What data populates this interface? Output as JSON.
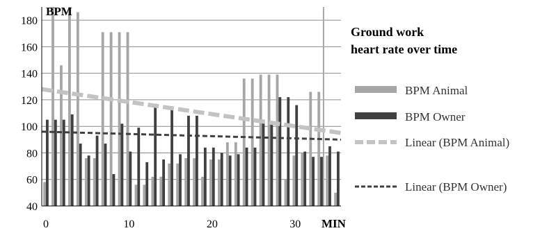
{
  "chart_data": {
    "type": "bar",
    "title_lines": [
      "Ground work",
      "heart rate over time"
    ],
    "xlabel": "MIN",
    "ylabel": "BPM",
    "x_ticks": [
      "0",
      "10",
      "20",
      "30"
    ],
    "y_ticks": [
      "40",
      "60",
      "80",
      "100",
      "120",
      "140",
      "160",
      "180"
    ],
    "xlim": [
      -0.5,
      35.5
    ],
    "ylim": [
      40,
      190
    ],
    "grid": true,
    "legend_position": "right",
    "x": [
      0,
      1,
      2,
      3,
      4,
      5,
      6,
      7,
      8,
      9,
      10,
      11,
      12,
      13,
      14,
      15,
      16,
      17,
      18,
      19,
      20,
      21,
      22,
      23,
      24,
      25,
      26,
      27,
      28,
      29,
      30,
      31,
      32,
      33,
      34,
      35
    ],
    "series": [
      {
        "name": "BPM Animal",
        "color": "#a6a6a6",
        "values": [
          58,
          190,
          146,
          190,
          186,
          76,
          76,
          171,
          171,
          171,
          171,
          56,
          56,
          62,
          62,
          72,
          72,
          76,
          76,
          62,
          75,
          75,
          88,
          88,
          136,
          136,
          139,
          139,
          139,
          60,
          78,
          80,
          126,
          126,
          78,
          50
        ]
      },
      {
        "name": "BPM Owner",
        "color": "#404040",
        "values": [
          105,
          105,
          105,
          109,
          87,
          78,
          93,
          87,
          64,
          102,
          81,
          99,
          73,
          117,
          75,
          113,
          79,
          108,
          108,
          84,
          84,
          80,
          78,
          79,
          84,
          84,
          105,
          103,
          122,
          122,
          116,
          81,
          77,
          77,
          85,
          81
        ]
      }
    ],
    "trendlines": [
      {
        "name": "Linear (BPM Animal)",
        "color": "#c3c3c3",
        "style": "dashed",
        "start": 128,
        "end": 95
      },
      {
        "name": "Linear (BPM Owner)",
        "color": "#404040",
        "style": "dotted",
        "start": 96,
        "end": 90
      }
    ],
    "reference_line": {
      "x": 33.4,
      "color": "#a6a6a6"
    }
  }
}
